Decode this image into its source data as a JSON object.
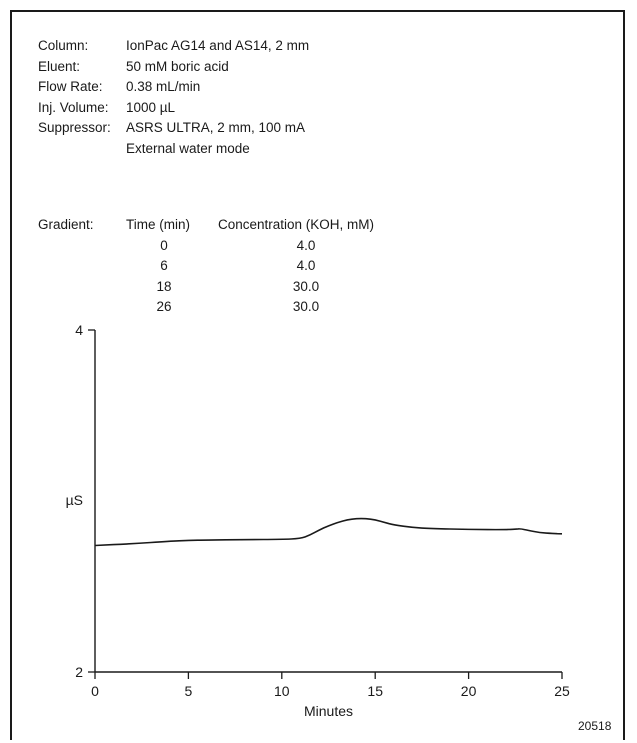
{
  "conditions": [
    {
      "key": "Column:",
      "value": "IonPac AG14 and AS14, 2 mm"
    },
    {
      "key": "Eluent:",
      "value": "50 mM boric acid"
    },
    {
      "key": "Flow Rate:",
      "value": "0.38 mL/min"
    },
    {
      "key": "Inj. Volume:",
      "value": "1000 µL"
    },
    {
      "key": "Suppressor:",
      "value": "ASRS ULTRA, 2 mm, 100 mA"
    },
    {
      "key": "",
      "value": "External water mode"
    }
  ],
  "gradient": {
    "label": "Gradient:",
    "col_time": "Time (min)",
    "col_conc": "Concentration (KOH, mM)",
    "rows": [
      {
        "time": "0",
        "conc": "4.0"
      },
      {
        "time": "6",
        "conc": "4.0"
      },
      {
        "time": "18",
        "conc": "30.0"
      },
      {
        "time": "26",
        "conc": "30.0"
      }
    ]
  },
  "figure_id": "20518",
  "chart_data": {
    "type": "line",
    "title": "",
    "xlabel": "Minutes",
    "ylabel": "µS",
    "xlim": [
      0,
      25
    ],
    "ylim": [
      2,
      4
    ],
    "xticks": [
      0,
      5,
      10,
      15,
      20,
      25
    ],
    "yticks": [
      2,
      4
    ],
    "grid": false,
    "series": [
      {
        "x": [
          0,
          2,
          4,
          5,
          6,
          8,
          10,
          11,
          11.5,
          12,
          12.5,
          13,
          13.5,
          14,
          14.5,
          15,
          15.5,
          16,
          17,
          18,
          20,
          22,
          22.5,
          22.8,
          23.2,
          23.8,
          24.5,
          25
        ],
        "y": [
          2.74,
          2.75,
          2.765,
          2.77,
          2.772,
          2.774,
          2.776,
          2.78,
          2.8,
          2.83,
          2.855,
          2.875,
          2.89,
          2.897,
          2.897,
          2.89,
          2.875,
          2.86,
          2.845,
          2.838,
          2.834,
          2.832,
          2.836,
          2.838,
          2.828,
          2.815,
          2.81,
          2.808
        ]
      }
    ]
  }
}
